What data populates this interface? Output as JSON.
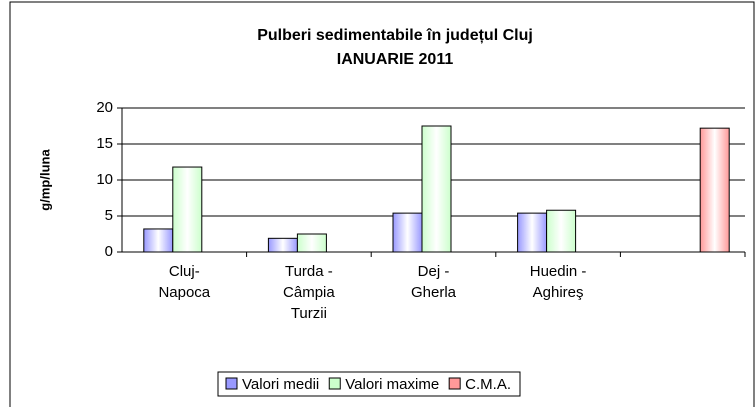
{
  "chart_data": {
    "type": "bar",
    "title": [
      "Pulberi sedimentabile în județul Cluj",
      "IANUARIE 2011"
    ],
    "y_label": "g/mp/luna",
    "categories": [
      "Cluj-Napoca",
      "Turda - Câmpia Turzii",
      "Dej - Gherla",
      "Huedin - Aghireş",
      null
    ],
    "series": [
      {
        "name": "Valori medii",
        "color": "#9999ff",
        "values": [
          3.2,
          1.9,
          5.4,
          5.4,
          null
        ]
      },
      {
        "name": "Valori maxime",
        "color": "#ccffcc",
        "values": [
          11.8,
          2.5,
          17.5,
          5.8,
          null
        ]
      },
      {
        "name": "C.M.A.",
        "color": "#ff9999",
        "values": [
          null,
          null,
          null,
          null,
          17.2
        ]
      }
    ],
    "ylim": [
      0,
      20
    ],
    "yticks": [
      0,
      5,
      10,
      15,
      20
    ],
    "grid": true,
    "legend": "bottom"
  }
}
